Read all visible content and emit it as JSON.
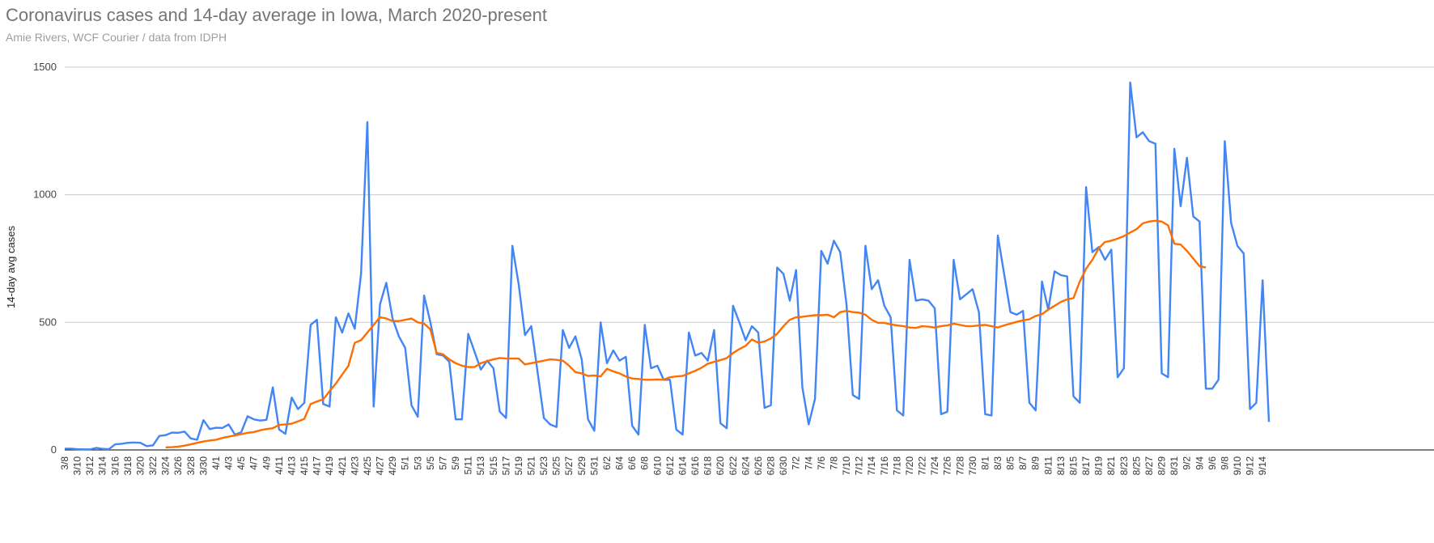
{
  "chart_data": {
    "type": "line",
    "title": "Coronavirus cases and 14-day average in Iowa, March 2020-present",
    "subtitle": "Amie Rivers, WCF Courier / data from IDPH",
    "xlabel": "",
    "ylabel": "14-day avg cases",
    "ylim": [
      0,
      1500
    ],
    "yticks": [
      0,
      500,
      1000,
      1500
    ],
    "grid": true,
    "legend": "none",
    "x_start": "3/8",
    "x_end": "9/15",
    "x_tick_labels": [
      "3/8",
      "3/10",
      "3/12",
      "3/14",
      "3/16",
      "3/18",
      "3/20",
      "3/22",
      "3/24",
      "3/26",
      "3/28",
      "3/30",
      "4/1",
      "4/3",
      "4/5",
      "4/7",
      "4/9",
      "4/11",
      "4/13",
      "4/15",
      "4/17",
      "4/19",
      "4/21",
      "4/23",
      "4/25",
      "4/27",
      "4/29",
      "5/1",
      "5/3",
      "5/5",
      "5/7",
      "5/9",
      "5/11",
      "5/13",
      "5/15",
      "5/17",
      "5/19",
      "5/21",
      "5/23",
      "5/25",
      "5/27",
      "5/29",
      "5/31",
      "6/2",
      "6/4",
      "6/6",
      "6/8",
      "6/10",
      "6/12",
      "6/14",
      "6/16",
      "6/18",
      "6/20",
      "6/22",
      "6/24",
      "6/26",
      "6/28",
      "6/30",
      "7/2",
      "7/4",
      "7/6",
      "7/8",
      "7/10",
      "7/12",
      "7/14",
      "7/16",
      "7/18",
      "7/20",
      "7/22",
      "7/24",
      "7/26",
      "7/28",
      "7/30",
      "8/1",
      "8/3",
      "8/5",
      "8/7",
      "8/9",
      "8/11",
      "8/13",
      "8/15",
      "8/17",
      "8/19",
      "8/21",
      "8/23",
      "8/25",
      "8/27",
      "8/29",
      "8/31",
      "9/2",
      "9/4",
      "9/6",
      "9/8",
      "9/10",
      "9/12",
      "9/14"
    ],
    "series": [
      {
        "color": "#4285f4",
        "values": [
          5,
          5,
          3,
          2,
          2,
          8,
          4,
          3,
          22,
          24,
          28,
          29,
          28,
          15,
          18,
          55,
          58,
          68,
          67,
          72,
          45,
          40,
          117,
          82,
          87,
          86,
          100,
          60,
          70,
          132,
          120,
          115,
          118,
          245,
          80,
          63,
          205,
          160,
          185,
          490,
          510,
          180,
          170,
          520,
          460,
          535,
          475,
          690,
          1285,
          170,
          570,
          655,
          515,
          445,
          400,
          175,
          130,
          605,
          500,
          375,
          370,
          345,
          120,
          120,
          455,
          385,
          315,
          350,
          320,
          150,
          125,
          800,
          650,
          450,
          485,
          305,
          125,
          100,
          90,
          470,
          400,
          445,
          355,
          120,
          75,
          500,
          340,
          390,
          350,
          365,
          95,
          60,
          490,
          320,
          330,
          275,
          275,
          80,
          60,
          460,
          370,
          380,
          350,
          470,
          105,
          85,
          565,
          500,
          430,
          485,
          460,
          165,
          175,
          715,
          690,
          585,
          705,
          245,
          100,
          200,
          780,
          730,
          820,
          775,
          570,
          215,
          200,
          800,
          630,
          665,
          565,
          520,
          155,
          135,
          745,
          585,
          590,
          585,
          555,
          140,
          150,
          745,
          590,
          610,
          630,
          540,
          140,
          135,
          840,
          690,
          540,
          530,
          545,
          185,
          155,
          660,
          550,
          700,
          685,
          680,
          210,
          185,
          1030,
          775,
          795,
          745,
          785,
          285,
          320,
          1440,
          1225,
          1245,
          1210,
          1200,
          300,
          285,
          1180,
          955,
          1145,
          915,
          895,
          240,
          240,
          275,
          1210,
          890,
          800,
          770,
          160,
          185,
          665,
          110
        ]
      },
      {
        "color": "#ff6d01",
        "start_index": 16,
        "values": [
          10,
          11,
          13,
          17,
          22,
          28,
          33,
          37,
          40,
          47,
          52,
          57,
          62,
          67,
          70,
          77,
          82,
          85,
          98,
          100,
          103,
          112,
          122,
          180,
          190,
          198,
          230,
          260,
          295,
          330,
          420,
          430,
          460,
          490,
          520,
          515,
          505,
          505,
          510,
          515,
          500,
          495,
          472,
          380,
          375,
          355,
          340,
          330,
          325,
          325,
          340,
          348,
          355,
          360,
          358,
          358,
          358,
          335,
          340,
          345,
          350,
          355,
          353,
          350,
          330,
          305,
          300,
          290,
          292,
          288,
          318,
          308,
          300,
          288,
          280,
          278,
          275,
          275,
          276,
          275,
          285,
          288,
          290,
          300,
          310,
          322,
          338,
          345,
          352,
          360,
          380,
          395,
          408,
          433,
          420,
          425,
          437,
          455,
          485,
          510,
          520,
          522,
          525,
          528,
          528,
          530,
          520,
          540,
          545,
          540,
          538,
          530,
          510,
          498,
          498,
          492,
          488,
          485,
          480,
          478,
          485,
          483,
          480,
          485,
          488,
          495,
          490,
          485,
          485,
          488,
          490,
          485,
          480,
          488,
          495,
          502,
          508,
          512,
          525,
          532,
          550,
          565,
          580,
          590,
          595,
          660,
          710,
          745,
          790,
          815,
          820,
          828,
          838,
          852,
          865,
          888,
          895,
          898,
          895,
          880,
          808,
          805,
          780,
          750,
          720,
          715
        ]
      }
    ]
  }
}
